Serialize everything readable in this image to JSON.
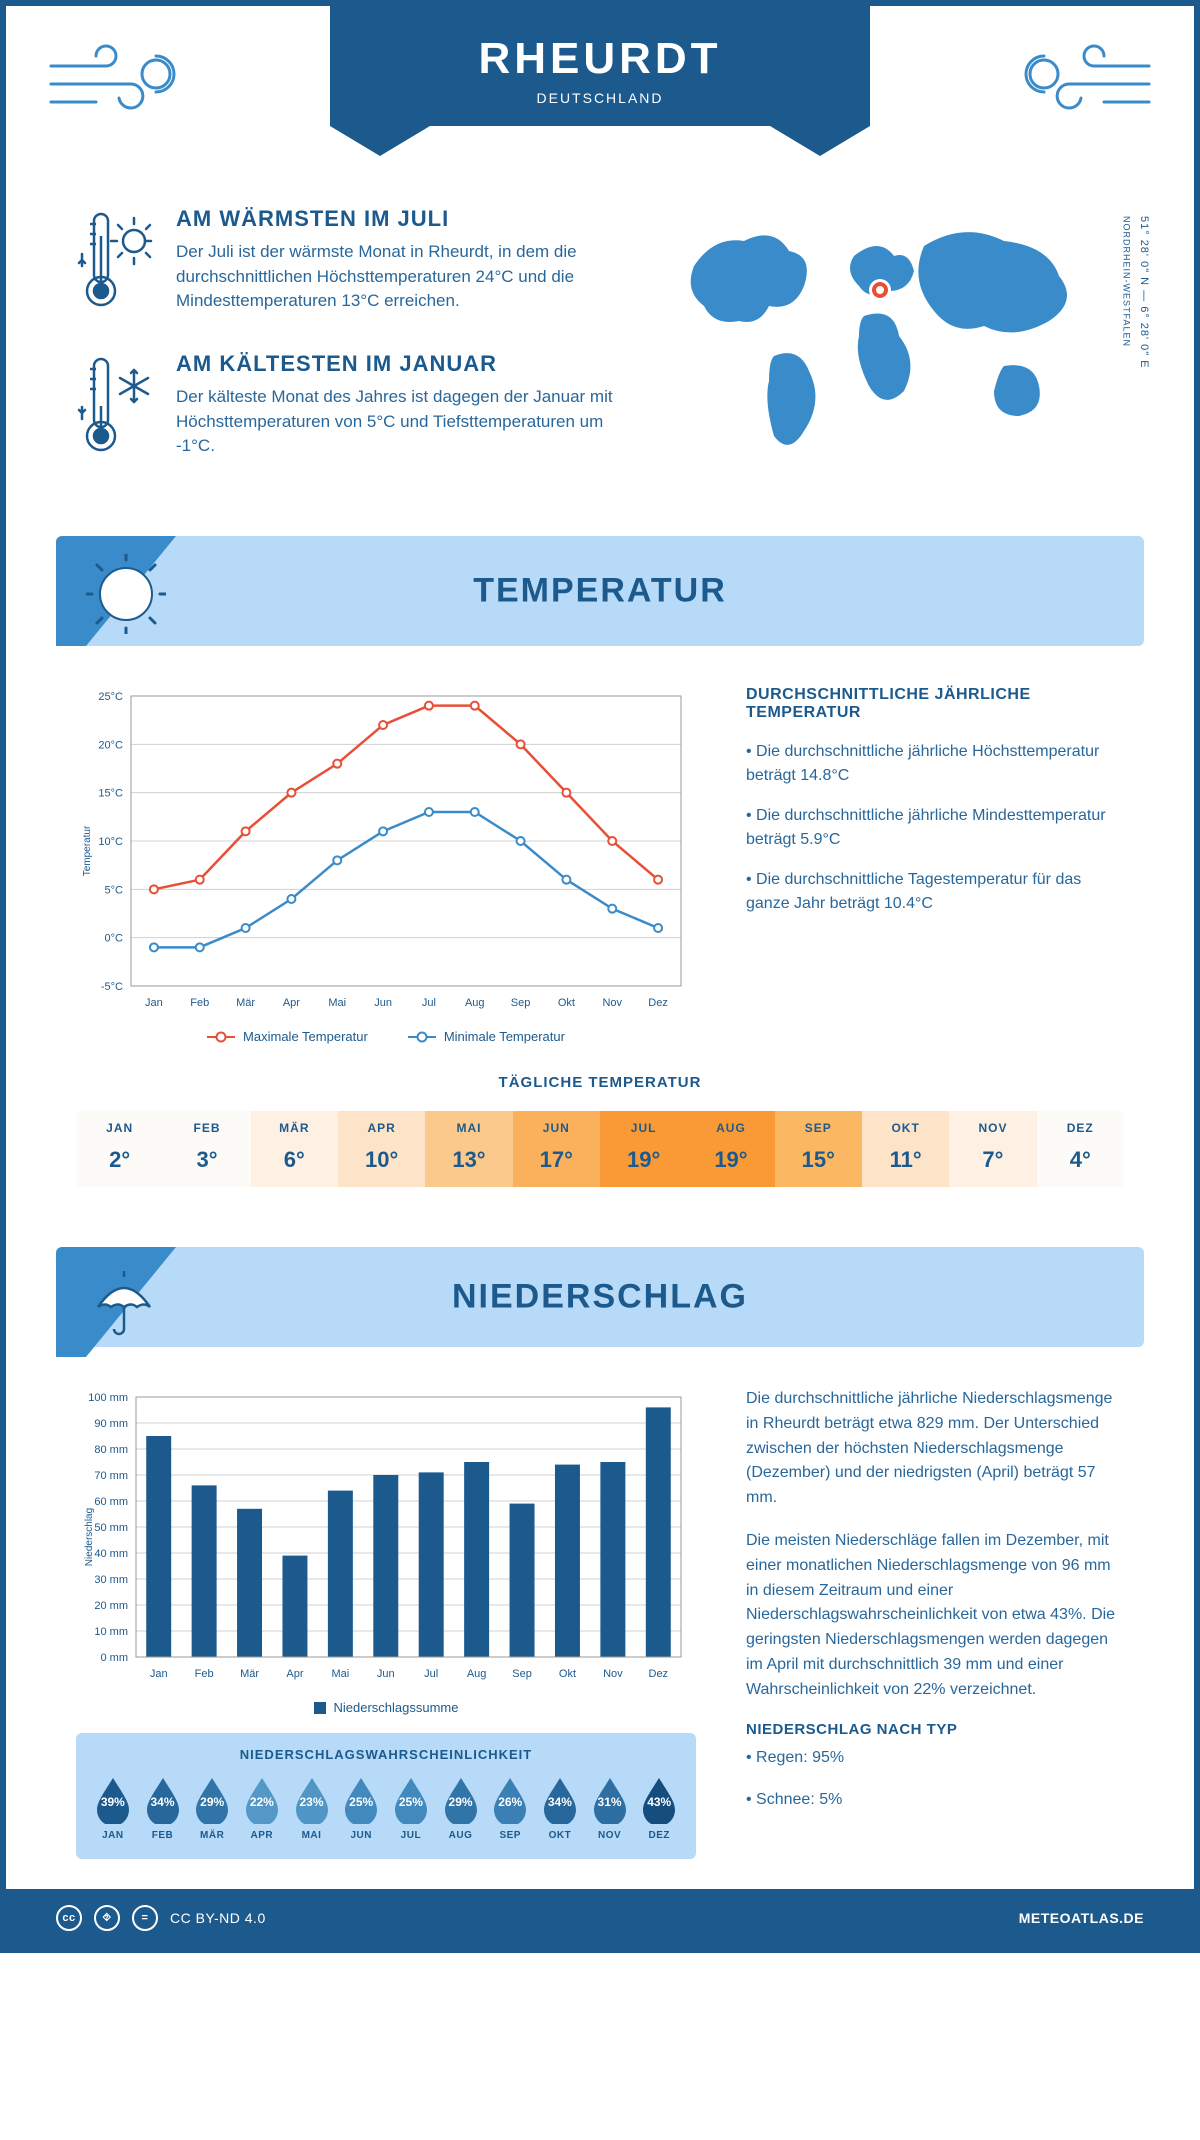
{
  "header": {
    "city": "RHEURDT",
    "country": "DEUTSCHLAND",
    "banner_color": "#1c5a8e"
  },
  "location": {
    "coords_line": "51° 28' 0\" N — 6° 28' 0\" E",
    "region": "NORDRHEIN-WESTFALEN",
    "marker_fill": "#e84f37",
    "map_fill": "#3a8bc9"
  },
  "facts": {
    "warm": {
      "title": "AM WÄRMSTEN IM JULI",
      "text": "Der Juli ist der wärmste Monat in Rheurdt, in dem die durchschnittlichen Höchsttemperaturen 24°C und die Mindesttemperaturen 13°C erreichen."
    },
    "cold": {
      "title": "AM KÄLTESTEN IM JANUAR",
      "text": "Der kälteste Monat des Jahres ist dagegen der Januar mit Höchsttemperaturen von 5°C und Tiefsttemperaturen um -1°C."
    }
  },
  "sections": {
    "temperature": "TEMPERATUR",
    "precipitation": "NIEDERSCHLAG"
  },
  "temp_chart": {
    "type": "line",
    "months": [
      "Jan",
      "Feb",
      "Mär",
      "Apr",
      "Mai",
      "Jun",
      "Jul",
      "Aug",
      "Sep",
      "Okt",
      "Nov",
      "Dez"
    ],
    "max_values": [
      5,
      6,
      11,
      15,
      18,
      22,
      24,
      24,
      20,
      15,
      10,
      6
    ],
    "min_values": [
      -1,
      -1,
      1,
      4,
      8,
      11,
      13,
      13,
      10,
      6,
      3,
      1
    ],
    "max_color": "#e84f37",
    "min_color": "#3a8bc9",
    "ylim": [
      -5,
      25
    ],
    "ytick_step": 5,
    "y_axis_label": "Temperatur",
    "legend_max": "Maximale Temperatur",
    "legend_min": "Minimale Temperatur",
    "grid_color": "#d0d0d0",
    "line_width": 2.5,
    "marker_size": 4
  },
  "temp_info": {
    "title": "DURCHSCHNITTLICHE JÄHRLICHE TEMPERATUR",
    "b1": "• Die durchschnittliche jährliche Höchsttemperatur beträgt 14.8°C",
    "b2": "• Die durchschnittliche jährliche Mindesttemperatur beträgt 5.9°C",
    "b3": "• Die durchschnittliche Tagestemperatur für das ganze Jahr beträgt 10.4°C"
  },
  "daily_temp": {
    "title": "TÄGLICHE TEMPERATUR",
    "months": [
      "JAN",
      "FEB",
      "MÄR",
      "APR",
      "MAI",
      "JUN",
      "JUL",
      "AUG",
      "SEP",
      "OKT",
      "NOV",
      "DEZ"
    ],
    "values": [
      "2°",
      "3°",
      "6°",
      "10°",
      "13°",
      "17°",
      "19°",
      "19°",
      "15°",
      "11°",
      "7°",
      "4°"
    ],
    "colors": [
      "#fdfbf7",
      "#fdfbf7",
      "#fef1e4",
      "#fde3c7",
      "#fcc98d",
      "#fbb15c",
      "#f99a36",
      "#f99a36",
      "#fbb863",
      "#fde3c7",
      "#fef1e4",
      "#fdfbf7"
    ]
  },
  "precip_chart": {
    "type": "bar",
    "months": [
      "Jan",
      "Feb",
      "Mär",
      "Apr",
      "Mai",
      "Jun",
      "Jul",
      "Aug",
      "Sep",
      "Okt",
      "Nov",
      "Dez"
    ],
    "values": [
      85,
      66,
      57,
      39,
      64,
      70,
      71,
      75,
      59,
      74,
      75,
      96
    ],
    "bar_color": "#1c5a8e",
    "ylim": [
      0,
      100
    ],
    "ytick_step": 10,
    "y_unit": "mm",
    "y_axis_label": "Niederschlag",
    "legend": "Niederschlagssumme",
    "grid_color": "#d0d0d0",
    "bar_width": 0.55
  },
  "precip_info": {
    "p1": "Die durchschnittliche jährliche Niederschlagsmenge in Rheurdt beträgt etwa 829 mm. Der Unterschied zwischen der höchsten Niederschlagsmenge (Dezember) und der niedrigsten (April) beträgt 57 mm.",
    "p2": "Die meisten Niederschläge fallen im Dezember, mit einer monatlichen Niederschlagsmenge von 96 mm in diesem Zeitraum und einer Niederschlagswahrscheinlichkeit von etwa 43%. Die geringsten Niederschlagsmengen werden dagegen im April mit durchschnittlich 39 mm und einer Wahrscheinlichkeit von 22% verzeichnet.",
    "type_title": "NIEDERSCHLAG NACH TYP",
    "type1": "• Regen: 95%",
    "type2": "• Schnee: 5%"
  },
  "probability": {
    "title": "NIEDERSCHLAGSWAHRSCHEINLICHKEIT",
    "months": [
      "JAN",
      "FEB",
      "MÄR",
      "APR",
      "MAI",
      "JUN",
      "JUL",
      "AUG",
      "SEP",
      "OKT",
      "NOV",
      "DEZ"
    ],
    "values": [
      "39%",
      "34%",
      "29%",
      "22%",
      "23%",
      "25%",
      "25%",
      "29%",
      "26%",
      "34%",
      "31%",
      "43%"
    ],
    "colors": [
      "#1c5a8e",
      "#28679b",
      "#3074a8",
      "#5398c7",
      "#4f95c5",
      "#4289bd",
      "#4289bd",
      "#3074a8",
      "#3a80b4",
      "#28679b",
      "#2d6fa2",
      "#154d7e"
    ]
  },
  "footer": {
    "license": "CC BY-ND 4.0",
    "site": "METEOATLAS.DE"
  }
}
